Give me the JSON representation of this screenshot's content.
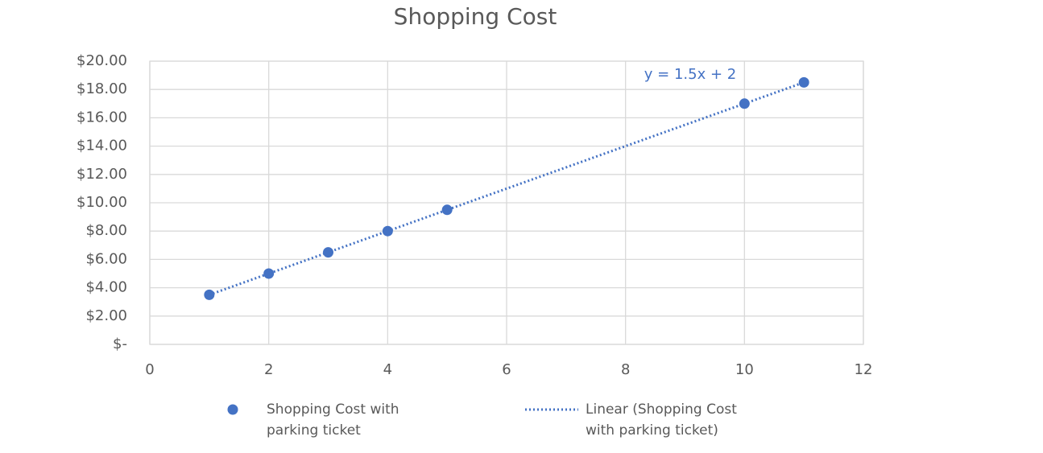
{
  "chart_data": {
    "type": "scatter",
    "title": "Shopping Cost",
    "series": [
      {
        "name": "Shopping Cost with parking ticket",
        "color": "#4472c4",
        "x": [
          1,
          2,
          3,
          4,
          5,
          10,
          11
        ],
        "values": [
          3.5,
          5,
          6.5,
          8,
          9.5,
          17,
          18.5
        ]
      }
    ],
    "trendline": {
      "name": "Linear (Shopping Cost with parking ticket)",
      "label": "y = 1.5x + 2",
      "slope": 1.5,
      "intercept": 2,
      "color": "#4472c4"
    },
    "xlim": [
      0,
      12
    ],
    "xticks": [
      0,
      2,
      4,
      6,
      8,
      10,
      12
    ],
    "ylim": [
      0,
      20
    ],
    "yticks": [
      {
        "value": 0,
        "label": "$-"
      },
      {
        "value": 2,
        "label": "$2.00"
      },
      {
        "value": 4,
        "label": "$4.00"
      },
      {
        "value": 6,
        "label": "$6.00"
      },
      {
        "value": 8,
        "label": "$8.00"
      },
      {
        "value": 10,
        "label": "$10.00"
      },
      {
        "value": 12,
        "label": "$12.00"
      },
      {
        "value": 14,
        "label": "$14.00"
      },
      {
        "value": 16,
        "label": "$16.00"
      },
      {
        "value": 18,
        "label": "$18.00"
      },
      {
        "value": 20,
        "label": "$20.00"
      }
    ],
    "grid": true
  }
}
